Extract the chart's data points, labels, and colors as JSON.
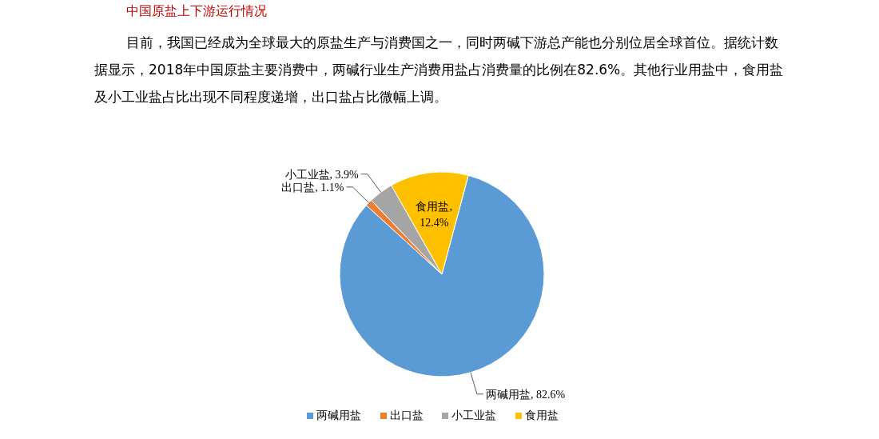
{
  "chart_data": {
    "type": "pie",
    "title": "中国原盐上下游运行情况",
    "subtitle": "目前，我国已经成为全球最大的原盐生产与消费国之一，同时两碱下游总产能也分别位居全球首位。据统计数据显示，2018年中国原盐主要消费中，两碱行业生产消费用盐占消费量的比例在82.6%。其他行业用盐中，食用盐及小工业盐占比出现不同程度递增，出口盐占比微幅上调。",
    "categories": [
      "两碱用盐",
      "出口盐",
      "小工业盐",
      "食用盐"
    ],
    "values": [
      82.6,
      1.1,
      3.9,
      12.4
    ],
    "colors": [
      "#5b9bd5",
      "#ed7d31",
      "#a5a5a5",
      "#ffc000"
    ],
    "value_labels": [
      "两碱用盐, 82.6%",
      "出口盐, 1.1%",
      "小工业盐, 3.9%",
      "食用盐, 12.4%"
    ],
    "legend": "bottom"
  }
}
